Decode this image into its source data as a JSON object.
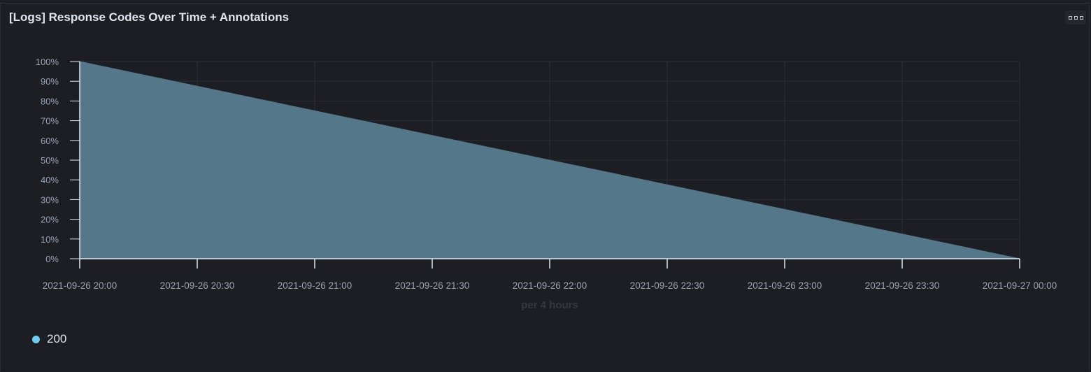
{
  "panel": {
    "title": "[Logs] Response Codes Over Time + Annotations",
    "options_icon": "ellipsis-boxes-icon"
  },
  "chart_data": {
    "type": "area",
    "x": [
      "2021-09-26 20:00",
      "2021-09-27 00:00"
    ],
    "series": [
      {
        "name": "200",
        "values": [
          100,
          0
        ],
        "color": "#6dccf1",
        "fill": "#54778a"
      }
    ],
    "x_ticks": [
      "2021-09-26 20:00",
      "2021-09-26 20:30",
      "2021-09-26 21:00",
      "2021-09-26 21:30",
      "2021-09-26 22:00",
      "2021-09-26 22:30",
      "2021-09-26 23:00",
      "2021-09-26 23:30",
      "2021-09-27 00:00"
    ],
    "y_ticks": [
      "0%",
      "10%",
      "20%",
      "30%",
      "40%",
      "50%",
      "60%",
      "70%",
      "80%",
      "90%",
      "100%"
    ],
    "ylim": [
      0,
      100
    ],
    "xlabel": "per 4 hours",
    "ylabel": "",
    "grid": true,
    "legend": "bottom-left"
  }
}
